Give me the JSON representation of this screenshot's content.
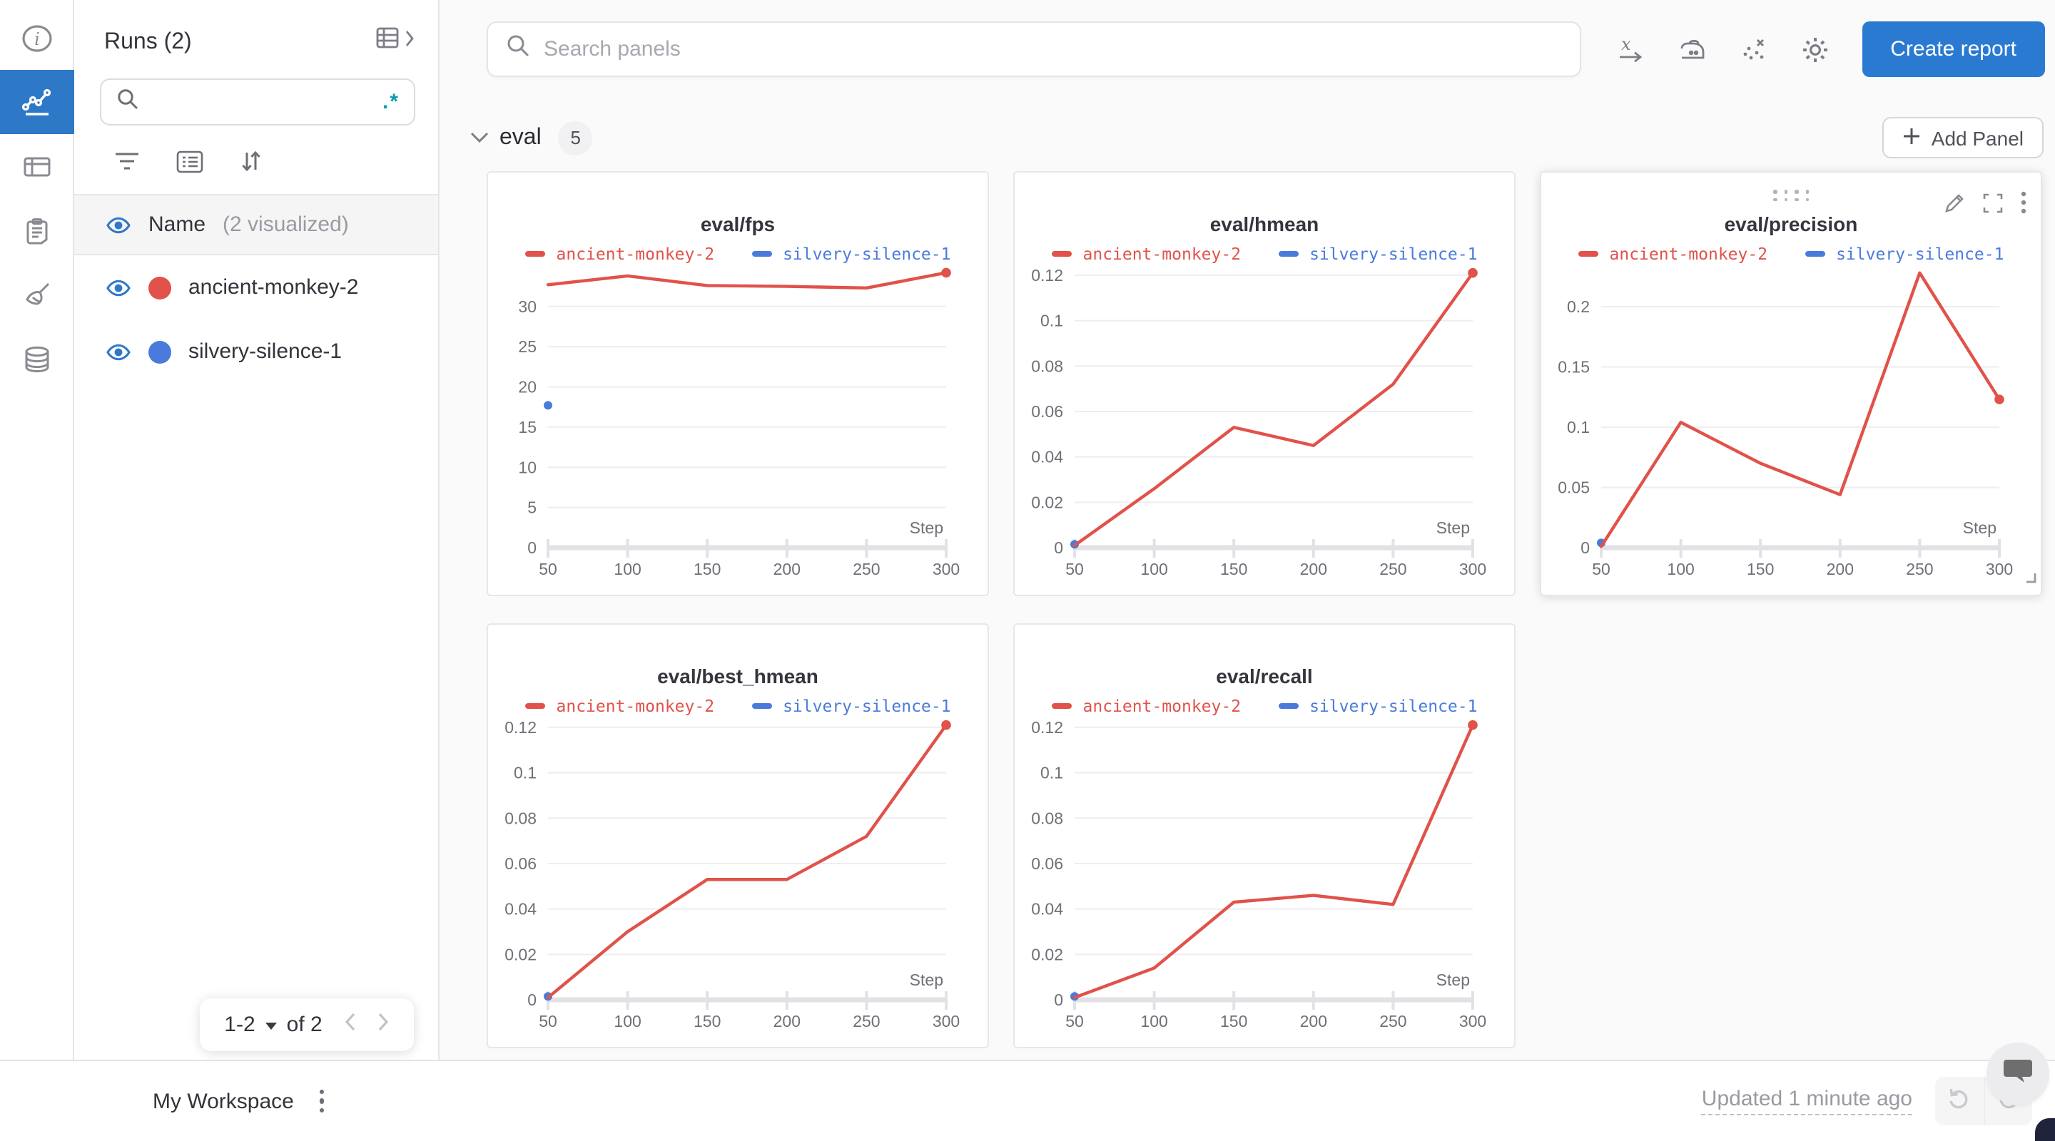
{
  "colors": {
    "accent_blue": "#2a7ad2",
    "active_nav_blue": "#2e78c8",
    "run_red": "#e0524a",
    "run_blue": "#4a7bdc",
    "teal_regex": "#0e9ba8"
  },
  "icon_rail": {
    "items": [
      {
        "icon": "info-icon",
        "active": false
      },
      {
        "icon": "line-chart-icon",
        "active": true
      },
      {
        "icon": "table-icon",
        "active": false
      },
      {
        "icon": "clipboard-icon",
        "active": false
      },
      {
        "icon": "broom-icon",
        "active": false
      },
      {
        "icon": "database-icon",
        "active": false
      }
    ]
  },
  "sidebar": {
    "title": "Runs (2)",
    "search": {
      "value": "",
      "placeholder": "",
      "regex_glyph": ".*"
    },
    "toolbar_icons": [
      "filter-icon",
      "list-icon",
      "sort-icon"
    ],
    "columns_header": {
      "label": "Name",
      "visualized": "(2 visualized)"
    },
    "runs": [
      {
        "name": "ancient-monkey-2",
        "color": "#e0524a",
        "visible": true
      },
      {
        "name": "silvery-silence-1",
        "color": "#4a7bdc",
        "visible": true
      }
    ],
    "pagination": {
      "range_label": "1-2",
      "of_label": "of 2"
    }
  },
  "topbar": {
    "search_placeholder": "Search panels",
    "icons": [
      "x-axis-icon",
      "smoothing-iron-icon",
      "outlier-points-icon",
      "settings-gear-icon"
    ],
    "create_report_label": "Create report"
  },
  "section": {
    "name": "eval",
    "panel_count": "5",
    "add_panel_label": "Add Panel"
  },
  "panels": [
    {
      "chart_data": {
        "type": "line",
        "title": "eval/fps",
        "xlabel": "Step",
        "xlim": [
          50,
          300
        ],
        "xticks": [
          50,
          100,
          150,
          200,
          250,
          300
        ],
        "ylim": [
          0,
          35.3
        ],
        "yticks": [
          0,
          5,
          10,
          15,
          20,
          25,
          30
        ],
        "grid": true,
        "legend_position": "top",
        "series": [
          {
            "name": "silvery-silence-1",
            "color": "#4a7bdc",
            "x": [
              50
            ],
            "values": [
              17.7
            ],
            "marker": "dot"
          },
          {
            "name": "ancient-monkey-2",
            "color": "#e0524a",
            "x": [
              50,
              100,
              150,
              200,
              250,
              300
            ],
            "values": [
              32.7,
              33.8,
              32.6,
              32.5,
              32.3,
              34.2
            ],
            "marker": "end-dot"
          }
        ]
      }
    },
    {
      "chart_data": {
        "type": "line",
        "title": "eval/hmean",
        "xlabel": "Step",
        "xlim": [
          50,
          300
        ],
        "xticks": [
          50,
          100,
          150,
          200,
          250,
          300
        ],
        "ylim": [
          0,
          0.125
        ],
        "yticks": [
          0,
          0.02,
          0.04,
          0.06,
          0.08,
          0.1,
          0.12
        ],
        "grid": true,
        "legend_position": "top",
        "series": [
          {
            "name": "silvery-silence-1",
            "color": "#4a7bdc",
            "x": [
              50
            ],
            "values": [
              0.0015
            ],
            "marker": "dot"
          },
          {
            "name": "ancient-monkey-2",
            "color": "#e0524a",
            "x": [
              50,
              100,
              150,
              200,
              250,
              300
            ],
            "values": [
              0.001,
              0.026,
              0.053,
              0.045,
              0.072,
              0.121
            ],
            "marker": "end-dot"
          }
        ]
      }
    },
    {
      "chart_data": {
        "type": "line",
        "title": "eval/precision",
        "xlabel": "Step",
        "xlim": [
          50,
          300
        ],
        "xticks": [
          50,
          100,
          150,
          200,
          250,
          300
        ],
        "ylim": [
          0,
          0.2355
        ],
        "yticks": [
          0,
          0.05,
          0.1,
          0.15,
          0.2
        ],
        "grid": true,
        "legend_position": "top",
        "series": [
          {
            "name": "silvery-silence-1",
            "color": "#4a7bdc",
            "x": [
              50
            ],
            "values": [
              0.004
            ],
            "marker": "dot"
          },
          {
            "name": "ancient-monkey-2",
            "color": "#e0524a",
            "x": [
              50,
              100,
              150,
              200,
              250,
              300
            ],
            "values": [
              0.001,
              0.104,
              0.07,
              0.044,
              0.228,
              0.123
            ],
            "marker": "end-dot"
          }
        ]
      }
    },
    {
      "chart_data": {
        "type": "line",
        "title": "eval/best_hmean",
        "xlabel": "Step",
        "xlim": [
          50,
          300
        ],
        "xticks": [
          50,
          100,
          150,
          200,
          250,
          300
        ],
        "ylim": [
          0,
          0.125
        ],
        "yticks": [
          0,
          0.02,
          0.04,
          0.06,
          0.08,
          0.1,
          0.12
        ],
        "grid": true,
        "legend_position": "top",
        "series": [
          {
            "name": "silvery-silence-1",
            "color": "#4a7bdc",
            "x": [
              50
            ],
            "values": [
              0.0015
            ],
            "marker": "dot"
          },
          {
            "name": "ancient-monkey-2",
            "color": "#e0524a",
            "x": [
              50,
              100,
              150,
              200,
              250,
              300
            ],
            "values": [
              0.001,
              0.03,
              0.053,
              0.053,
              0.072,
              0.121
            ],
            "marker": "end-dot"
          }
        ]
      }
    },
    {
      "chart_data": {
        "type": "line",
        "title": "eval/recall",
        "xlabel": "Step",
        "xlim": [
          50,
          300
        ],
        "xticks": [
          50,
          100,
          150,
          200,
          250,
          300
        ],
        "ylim": [
          0,
          0.125
        ],
        "yticks": [
          0,
          0.02,
          0.04,
          0.06,
          0.08,
          0.1,
          0.12
        ],
        "grid": true,
        "legend_position": "top",
        "series": [
          {
            "name": "silvery-silence-1",
            "color": "#4a7bdc",
            "x": [
              50
            ],
            "values": [
              0.0015
            ],
            "marker": "dot"
          },
          {
            "name": "ancient-monkey-2",
            "color": "#e0524a",
            "x": [
              50,
              100,
              150,
              200,
              250,
              300
            ],
            "values": [
              0.001,
              0.014,
              0.043,
              0.046,
              0.042,
              0.121
            ],
            "marker": "end-dot"
          }
        ]
      }
    }
  ],
  "panel_hover_controls": {
    "icons": [
      "drag-handle-dots",
      "pencil-icon",
      "fullscreen-icon",
      "kebab-menu-icon",
      "resize-handle-icon"
    ]
  },
  "footer": {
    "workspace_label": "My Workspace",
    "updated_label": "Updated 1 minute ago",
    "icons": [
      "kebab-menu-icon",
      "undo-icon",
      "redo-icon",
      "chat-bubble-icon"
    ]
  }
}
